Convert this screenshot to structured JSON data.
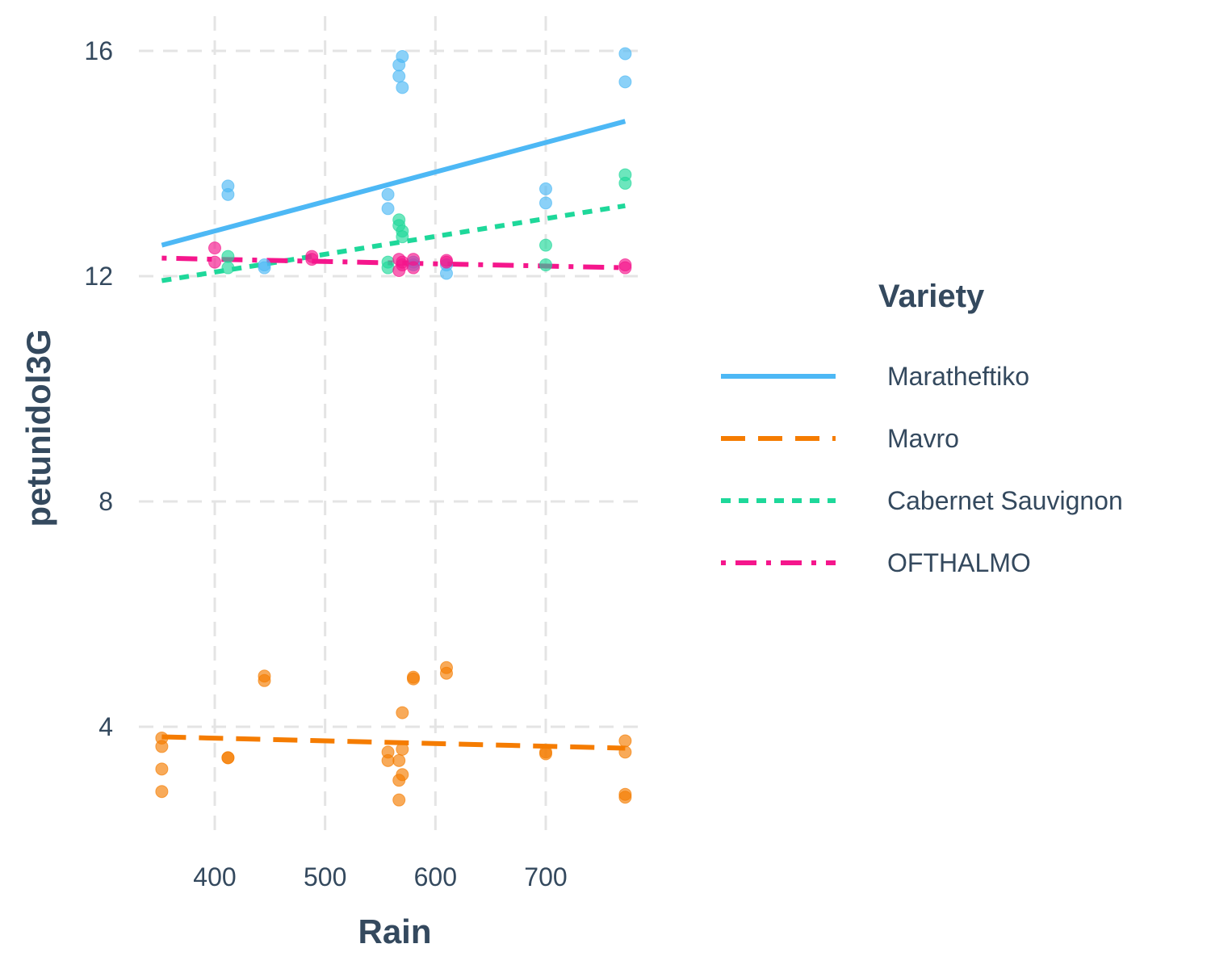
{
  "chart_data": {
    "type": "scatter",
    "xlabel": "Rain",
    "ylabel": "petunidol3G",
    "xlim": [
      343,
      785
    ],
    "ylim": [
      1.9,
      16.8
    ],
    "x_ticks": [
      400,
      500,
      600,
      700
    ],
    "y_ticks": [
      4,
      8,
      12,
      16
    ],
    "x_tick_labels": [
      "400",
      "500",
      "600",
      "700"
    ],
    "y_tick_labels": [
      "4",
      "8",
      "12",
      "16"
    ],
    "grid": true,
    "legend": {
      "title": "Variety",
      "placement": "right"
    },
    "series": [
      {
        "name": "Maratheftiko",
        "color": "#4db8f5",
        "line_style": "solid",
        "trend": [
          [
            352,
            12.55
          ],
          [
            772,
            14.75
          ]
        ],
        "points": [
          [
            412,
            13.6
          ],
          [
            412,
            13.45
          ],
          [
            445,
            12.2
          ],
          [
            445,
            12.15
          ],
          [
            557,
            13.45
          ],
          [
            557,
            13.2
          ],
          [
            567,
            15.75
          ],
          [
            567,
            15.55
          ],
          [
            570,
            15.9
          ],
          [
            570,
            15.35
          ],
          [
            580,
            12.25
          ],
          [
            580,
            12.2
          ],
          [
            610,
            12.2
          ],
          [
            610,
            12.05
          ],
          [
            700,
            13.55
          ],
          [
            700,
            13.3
          ],
          [
            772,
            15.95
          ],
          [
            772,
            15.45
          ]
        ]
      },
      {
        "name": "Mavro",
        "color": "#f57c00",
        "line_style": "dashed",
        "trend": [
          [
            352,
            3.82
          ],
          [
            772,
            3.62
          ]
        ],
        "points": [
          [
            352,
            3.8
          ],
          [
            352,
            3.65
          ],
          [
            352,
            3.25
          ],
          [
            352,
            2.85
          ],
          [
            412,
            3.45
          ],
          [
            412,
            3.45
          ],
          [
            445,
            4.9
          ],
          [
            445,
            4.82
          ],
          [
            557,
            3.55
          ],
          [
            557,
            3.4
          ],
          [
            567,
            3.4
          ],
          [
            567,
            3.05
          ],
          [
            567,
            2.7
          ],
          [
            570,
            3.6
          ],
          [
            570,
            3.15
          ],
          [
            570,
            4.25
          ],
          [
            580,
            4.88
          ],
          [
            580,
            4.85
          ],
          [
            610,
            5.05
          ],
          [
            610,
            4.95
          ],
          [
            700,
            3.55
          ],
          [
            700,
            3.52
          ],
          [
            772,
            3.75
          ],
          [
            772,
            3.55
          ],
          [
            772,
            2.8
          ],
          [
            772,
            2.75
          ]
        ]
      },
      {
        "name": "Cabernet Sauvignon",
        "color": "#1ed89a",
        "line_style": "dotted",
        "trend": [
          [
            352,
            11.92
          ],
          [
            772,
            13.25
          ]
        ],
        "points": [
          [
            412,
            12.35
          ],
          [
            412,
            12.15
          ],
          [
            557,
            12.25
          ],
          [
            557,
            12.15
          ],
          [
            567,
            13.0
          ],
          [
            567,
            12.9
          ],
          [
            570,
            12.8
          ],
          [
            570,
            12.7
          ],
          [
            700,
            12.55
          ],
          [
            700,
            12.2
          ],
          [
            772,
            13.8
          ],
          [
            772,
            13.65
          ]
        ]
      },
      {
        "name": "OFTHALMO",
        "color": "#f5168c",
        "line_style": "dotdash",
        "trend": [
          [
            352,
            12.32
          ],
          [
            772,
            12.15
          ]
        ],
        "points": [
          [
            400,
            12.5
          ],
          [
            400,
            12.25
          ],
          [
            488,
            12.35
          ],
          [
            488,
            12.3
          ],
          [
            567,
            12.3
          ],
          [
            567,
            12.1
          ],
          [
            570,
            12.2
          ],
          [
            570,
            12.25
          ],
          [
            580,
            12.3
          ],
          [
            580,
            12.15
          ],
          [
            610,
            12.25
          ],
          [
            610,
            12.28
          ],
          [
            772,
            12.2
          ],
          [
            772,
            12.15
          ]
        ]
      }
    ]
  }
}
